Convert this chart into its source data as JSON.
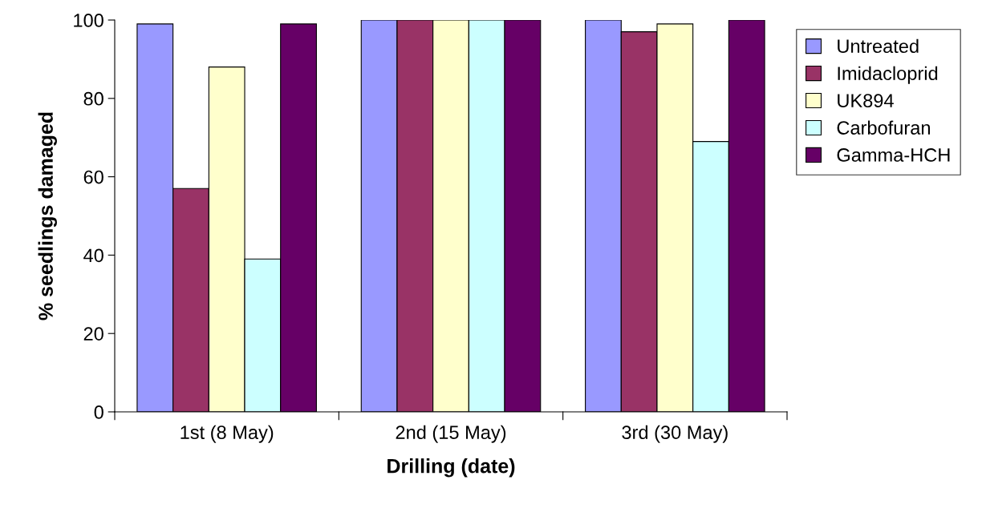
{
  "chart_data": {
    "type": "bar",
    "xlabel": "Drilling (date)",
    "ylabel": "% seedlings damaged",
    "categories": [
      "1st (8 May)",
      "2nd (15 May)",
      "3rd (30 May)"
    ],
    "series": [
      {
        "name": "Untreated",
        "color": "#9999ff",
        "values": [
          99,
          100,
          100
        ]
      },
      {
        "name": "Imidacloprid",
        "color": "#993366",
        "values": [
          57,
          100,
          97
        ]
      },
      {
        "name": "UK894",
        "color": "#ffffcc",
        "values": [
          88,
          100,
          99
        ]
      },
      {
        "name": "Carbofuran",
        "color": "#ccffff",
        "values": [
          39,
          100,
          69
        ]
      },
      {
        "name": "Gamma-HCH",
        "color": "#660066",
        "values": [
          99,
          100,
          100
        ]
      }
    ],
    "ylim": [
      0,
      100
    ],
    "yticks": [
      0,
      20,
      40,
      60,
      80,
      100
    ],
    "grid": false,
    "legend": "right"
  }
}
